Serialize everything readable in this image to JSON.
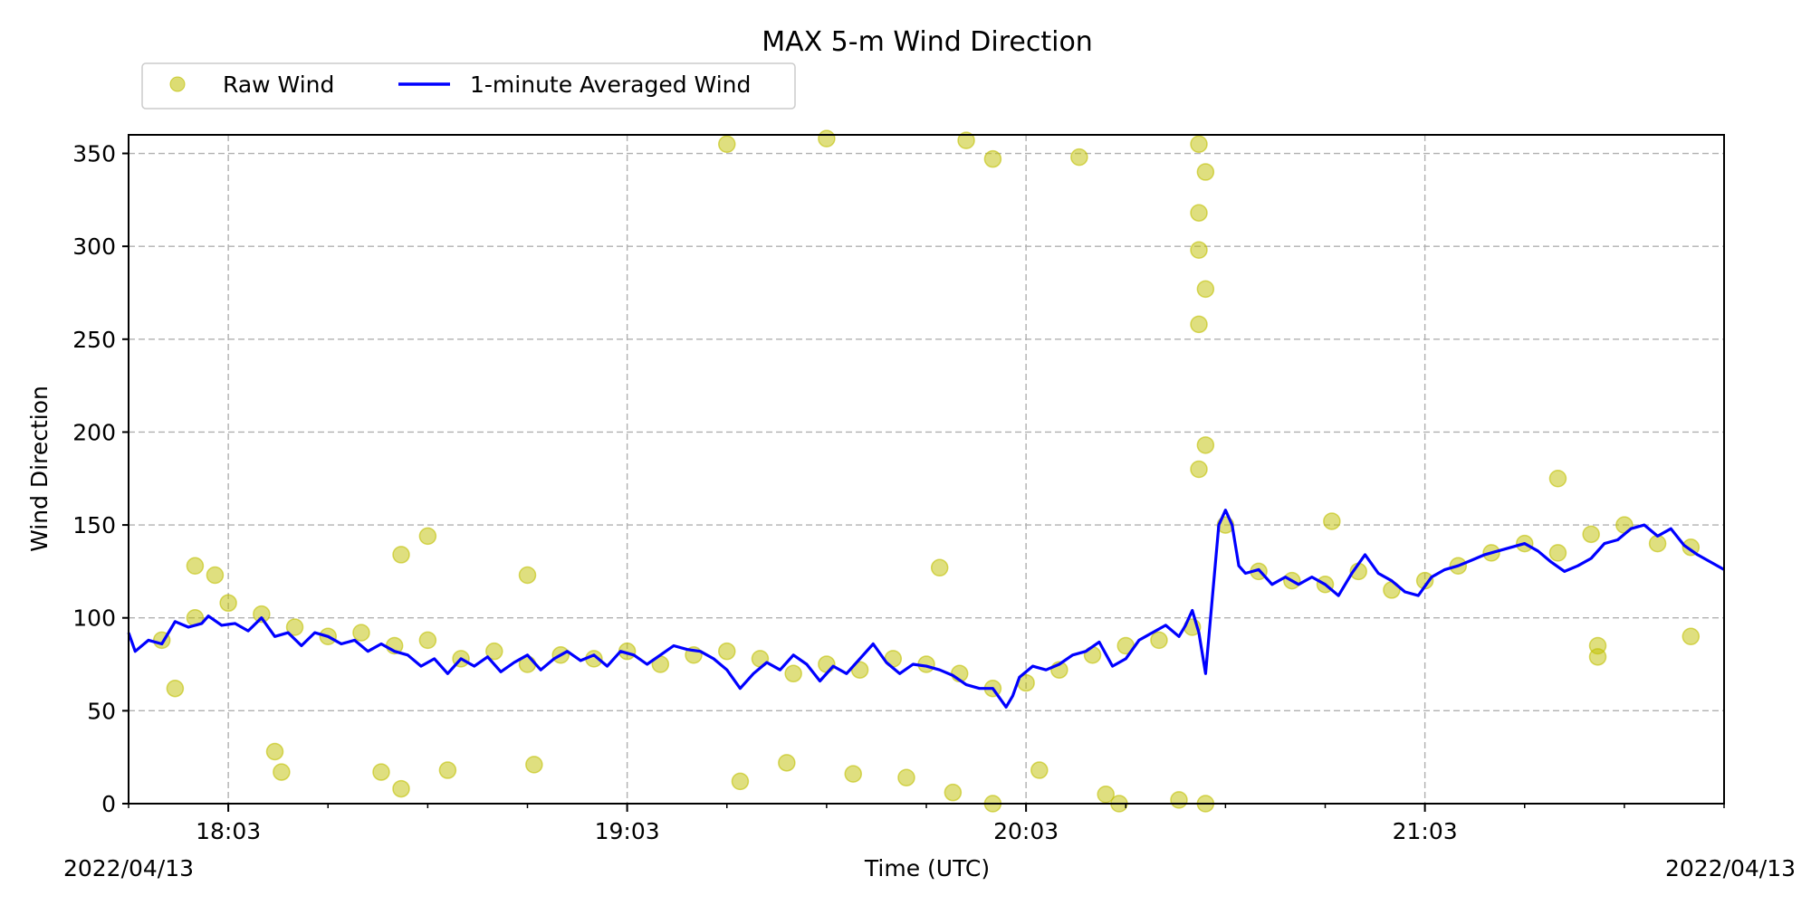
{
  "chart_data": {
    "type": "line",
    "title": "MAX 5-m Wind Direction",
    "xlabel": "Time (UTC)",
    "ylabel": "Wind Direction",
    "x_time_range": [
      "17:48",
      "21:48"
    ],
    "x_ticks": [
      "18:03",
      "19:03",
      "20:03",
      "21:03"
    ],
    "x_edge_labels": [
      "2022/04/13",
      "2022/04/13"
    ],
    "ylim": [
      0,
      360
    ],
    "y_ticks": [
      "0",
      "50",
      "100",
      "150",
      "200",
      "250",
      "300",
      "350"
    ],
    "grid": true,
    "legend_placement": "top-left, above plot",
    "series": [
      {
        "name": "Raw Wind",
        "kind": "scatter",
        "color": "#bfbf00",
        "points": [
          [
            "17:53",
            88
          ],
          [
            "17:58",
            100
          ],
          [
            "18:03",
            108
          ],
          [
            "18:08",
            102
          ],
          [
            "18:13",
            95
          ],
          [
            "18:18",
            90
          ],
          [
            "18:23",
            92
          ],
          [
            "18:28",
            85
          ],
          [
            "18:33",
            88
          ],
          [
            "18:38",
            78
          ],
          [
            "18:43",
            82
          ],
          [
            "18:48",
            75
          ],
          [
            "18:53",
            80
          ],
          [
            "18:58",
            78
          ],
          [
            "19:03",
            82
          ],
          [
            "19:08",
            75
          ],
          [
            "19:13",
            80
          ],
          [
            "19:18",
            82
          ],
          [
            "19:23",
            78
          ],
          [
            "19:28",
            70
          ],
          [
            "19:33",
            75
          ],
          [
            "19:38",
            72
          ],
          [
            "19:43",
            78
          ],
          [
            "19:48",
            75
          ],
          [
            "19:53",
            70
          ],
          [
            "19:58",
            62
          ],
          [
            "20:03",
            65
          ],
          [
            "20:08",
            72
          ],
          [
            "20:13",
            80
          ],
          [
            "20:18",
            85
          ],
          [
            "20:23",
            88
          ],
          [
            "20:28",
            95
          ],
          [
            "20:33",
            150
          ],
          [
            "20:38",
            125
          ],
          [
            "20:43",
            120
          ],
          [
            "20:48",
            118
          ],
          [
            "20:53",
            125
          ],
          [
            "20:58",
            115
          ],
          [
            "21:03",
            120
          ],
          [
            "21:08",
            128
          ],
          [
            "21:13",
            135
          ],
          [
            "21:18",
            140
          ],
          [
            "21:23",
            135
          ],
          [
            "21:28",
            145
          ],
          [
            "21:33",
            150
          ],
          [
            "21:38",
            140
          ],
          [
            "21:43",
            138
          ],
          [
            "17:58",
            128
          ],
          [
            "18:01",
            123
          ],
          [
            "18:29",
            134
          ],
          [
            "18:33",
            144
          ],
          [
            "18:48",
            123
          ],
          [
            "19:18",
            355
          ],
          [
            "19:33",
            358
          ],
          [
            "19:54",
            357
          ],
          [
            "19:58",
            347
          ],
          [
            "20:11",
            348
          ],
          [
            "20:29",
            355
          ],
          [
            "20:30",
            340
          ],
          [
            "20:29",
            318
          ],
          [
            "20:29",
            298
          ],
          [
            "20:30",
            277
          ],
          [
            "20:29",
            258
          ],
          [
            "20:30",
            193
          ],
          [
            "20:29",
            180
          ],
          [
            "19:50",
            127
          ],
          [
            "17:55",
            62
          ],
          [
            "18:10",
            28
          ],
          [
            "18:11",
            17
          ],
          [
            "18:26",
            17
          ],
          [
            "18:29",
            8
          ],
          [
            "18:36",
            18
          ],
          [
            "18:49",
            21
          ],
          [
            "19:20",
            12
          ],
          [
            "19:27",
            22
          ],
          [
            "19:37",
            16
          ],
          [
            "19:45",
            14
          ],
          [
            "19:52",
            6
          ],
          [
            "19:58",
            0
          ],
          [
            "20:05",
            18
          ],
          [
            "20:15",
            5
          ],
          [
            "20:17",
            0
          ],
          [
            "20:26",
            2
          ],
          [
            "20:30",
            0
          ],
          [
            "21:29",
            79
          ],
          [
            "21:29",
            85
          ],
          [
            "21:43",
            90
          ],
          [
            "20:49",
            152
          ],
          [
            "21:23",
            175
          ]
        ]
      },
      {
        "name": "1-minute Averaged Wind",
        "kind": "line",
        "color": "#0000ff",
        "points": [
          [
            "17:48",
            92
          ],
          [
            "17:49",
            82
          ],
          [
            "17:51",
            88
          ],
          [
            "17:53",
            86
          ],
          [
            "17:55",
            98
          ],
          [
            "17:57",
            95
          ],
          [
            "17:59",
            97
          ],
          [
            "18:00",
            101
          ],
          [
            "18:02",
            96
          ],
          [
            "18:04",
            97
          ],
          [
            "18:06",
            93
          ],
          [
            "18:08",
            100
          ],
          [
            "18:10",
            90
          ],
          [
            "18:12",
            92
          ],
          [
            "18:14",
            85
          ],
          [
            "18:16",
            92
          ],
          [
            "18:18",
            90
          ],
          [
            "18:20",
            86
          ],
          [
            "18:22",
            88
          ],
          [
            "18:24",
            82
          ],
          [
            "18:26",
            86
          ],
          [
            "18:28",
            82
          ],
          [
            "18:30",
            80
          ],
          [
            "18:32",
            74
          ],
          [
            "18:34",
            78
          ],
          [
            "18:36",
            70
          ],
          [
            "18:38",
            78
          ],
          [
            "18:40",
            74
          ],
          [
            "18:42",
            79
          ],
          [
            "18:44",
            71
          ],
          [
            "18:46",
            76
          ],
          [
            "18:48",
            80
          ],
          [
            "18:50",
            72
          ],
          [
            "18:52",
            78
          ],
          [
            "18:54",
            82
          ],
          [
            "18:56",
            77
          ],
          [
            "18:58",
            80
          ],
          [
            "19:00",
            74
          ],
          [
            "19:02",
            82
          ],
          [
            "19:04",
            80
          ],
          [
            "19:06",
            75
          ],
          [
            "19:08",
            80
          ],
          [
            "19:10",
            85
          ],
          [
            "19:12",
            83
          ],
          [
            "19:14",
            82
          ],
          [
            "19:16",
            78
          ],
          [
            "19:18",
            72
          ],
          [
            "19:20",
            62
          ],
          [
            "19:22",
            70
          ],
          [
            "19:24",
            76
          ],
          [
            "19:26",
            72
          ],
          [
            "19:28",
            80
          ],
          [
            "19:30",
            75
          ],
          [
            "19:32",
            66
          ],
          [
            "19:34",
            74
          ],
          [
            "19:36",
            70
          ],
          [
            "19:38",
            78
          ],
          [
            "19:40",
            86
          ],
          [
            "19:42",
            76
          ],
          [
            "19:44",
            70
          ],
          [
            "19:46",
            75
          ],
          [
            "19:48",
            74
          ],
          [
            "19:50",
            72
          ],
          [
            "19:52",
            69
          ],
          [
            "19:54",
            64
          ],
          [
            "19:56",
            62
          ],
          [
            "19:58",
            62
          ],
          [
            "20:00",
            52
          ],
          [
            "20:01",
            58
          ],
          [
            "20:02",
            68
          ],
          [
            "20:04",
            74
          ],
          [
            "20:06",
            72
          ],
          [
            "20:08",
            75
          ],
          [
            "20:10",
            80
          ],
          [
            "20:12",
            82
          ],
          [
            "20:14",
            87
          ],
          [
            "20:16",
            74
          ],
          [
            "20:18",
            78
          ],
          [
            "20:20",
            88
          ],
          [
            "20:22",
            92
          ],
          [
            "20:24",
            96
          ],
          [
            "20:26",
            90
          ],
          [
            "20:27",
            96
          ],
          [
            "20:28",
            104
          ],
          [
            "20:29",
            92
          ],
          [
            "20:30",
            70
          ],
          [
            "20:31",
            110
          ],
          [
            "20:32",
            150
          ],
          [
            "20:33",
            158
          ],
          [
            "20:34",
            150
          ],
          [
            "20:35",
            128
          ],
          [
            "20:36",
            124
          ],
          [
            "20:38",
            126
          ],
          [
            "20:40",
            118
          ],
          [
            "20:42",
            122
          ],
          [
            "20:44",
            118
          ],
          [
            "20:46",
            122
          ],
          [
            "20:48",
            118
          ],
          [
            "20:50",
            112
          ],
          [
            "20:52",
            124
          ],
          [
            "20:54",
            134
          ],
          [
            "20:56",
            124
          ],
          [
            "20:58",
            120
          ],
          [
            "21:00",
            114
          ],
          [
            "21:02",
            112
          ],
          [
            "21:04",
            122
          ],
          [
            "21:06",
            126
          ],
          [
            "21:08",
            128
          ],
          [
            "21:10",
            131
          ],
          [
            "21:12",
            134
          ],
          [
            "21:14",
            136
          ],
          [
            "21:16",
            138
          ],
          [
            "21:18",
            140
          ],
          [
            "21:20",
            136
          ],
          [
            "21:22",
            130
          ],
          [
            "21:24",
            125
          ],
          [
            "21:26",
            128
          ],
          [
            "21:28",
            132
          ],
          [
            "21:30",
            140
          ],
          [
            "21:32",
            142
          ],
          [
            "21:34",
            148
          ],
          [
            "21:36",
            150
          ],
          [
            "21:38",
            144
          ],
          [
            "21:40",
            148
          ],
          [
            "21:42",
            139
          ],
          [
            "21:44",
            134
          ],
          [
            "21:46",
            130
          ],
          [
            "21:48",
            126
          ]
        ]
      }
    ]
  }
}
